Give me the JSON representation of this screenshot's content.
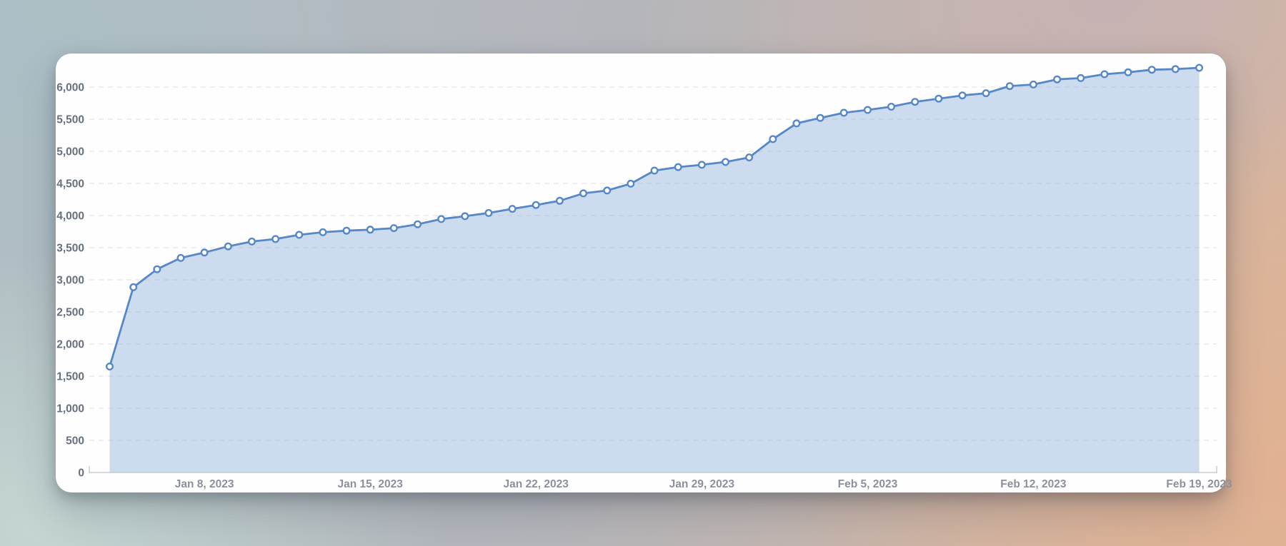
{
  "page": {
    "description": "Cumulative daily metric area chart on a white rounded card over a blurred pastel background",
    "background_colors": {
      "top_left": "#aebec4",
      "bottom_left": "#c5d7d3",
      "top_right": "#c5b2b5",
      "bottom_right": "#e2b192"
    },
    "card_color": "#fefefe"
  },
  "chart_data": {
    "type": "area",
    "title": "",
    "xlabel": "",
    "ylabel": "",
    "legend": "none",
    "grid": "horizontal dashed gridlines",
    "line_color": "#5688c7",
    "area_fill_color": "rgba(127,162,214,0.38)",
    "marker_style": "circle, white fill, blue stroke",
    "axis_line_color": "#c6cbd6",
    "ylim": [
      0,
      6500
    ],
    "y_ticks": [
      0,
      500,
      1000,
      1500,
      2000,
      2500,
      3000,
      3500,
      4000,
      4500,
      5000,
      5500,
      6000
    ],
    "y_tick_labels": [
      "0",
      "500",
      "1,000",
      "1,500",
      "2,000",
      "2,500",
      "3,000",
      "3,500",
      "4,000",
      "4,500",
      "5,000",
      "5,500",
      "6,000"
    ],
    "x_tick_labels": [
      "Jan 8, 2023",
      "Jan 15, 2023",
      "Jan 22, 2023",
      "Jan 29, 2023",
      "Feb 5, 2023",
      "Feb 12, 2023",
      "Feb 19, 2023"
    ],
    "x_tick_day_index": [
      4,
      11,
      18,
      25,
      32,
      39,
      46
    ],
    "x": [
      "2023-01-04",
      "2023-01-05",
      "2023-01-06",
      "2023-01-07",
      "2023-01-08",
      "2023-01-09",
      "2023-01-10",
      "2023-01-11",
      "2023-01-12",
      "2023-01-13",
      "2023-01-14",
      "2023-01-15",
      "2023-01-16",
      "2023-01-17",
      "2023-01-18",
      "2023-01-19",
      "2023-01-20",
      "2023-01-21",
      "2023-01-22",
      "2023-01-23",
      "2023-01-24",
      "2023-01-25",
      "2023-01-26",
      "2023-01-27",
      "2023-01-28",
      "2023-01-29",
      "2023-01-30",
      "2023-01-31",
      "2023-02-01",
      "2023-02-02",
      "2023-02-03",
      "2023-02-04",
      "2023-02-05",
      "2023-02-06",
      "2023-02-07",
      "2023-02-08",
      "2023-02-09",
      "2023-02-10",
      "2023-02-11",
      "2023-02-12",
      "2023-02-13",
      "2023-02-14",
      "2023-02-15",
      "2023-02-16",
      "2023-02-17",
      "2023-02-18",
      "2023-02-19"
    ],
    "values": [
      1650,
      2885,
      3165,
      3340,
      3425,
      3520,
      3595,
      3635,
      3700,
      3740,
      3765,
      3780,
      3805,
      3865,
      3945,
      3990,
      4040,
      4105,
      4165,
      4230,
      4345,
      4390,
      4495,
      4700,
      4755,
      4790,
      4835,
      4905,
      5190,
      5435,
      5520,
      5600,
      5645,
      5695,
      5770,
      5820,
      5870,
      5905,
      6015,
      6040,
      6120,
      6140,
      6200,
      6230,
      6270,
      6280,
      6300
    ]
  }
}
